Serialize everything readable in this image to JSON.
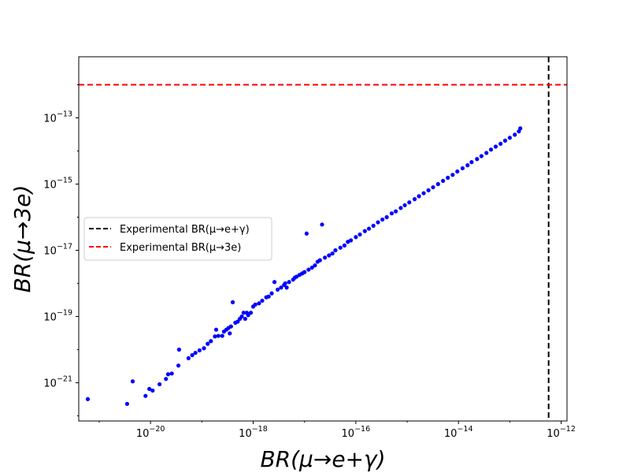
{
  "chart_data": {
    "type": "scatter",
    "title": "",
    "xlabel": "BR(μ→e+γ)",
    "ylabel": "BR(μ→3e)",
    "xscale": "log",
    "yscale": "log",
    "xlim": [
      4e-22,
      1.3e-12
    ],
    "ylim": [
      7e-23,
      7e-12
    ],
    "xticks": [
      {
        "value": 1e-20,
        "base": "10",
        "exp": "−20"
      },
      {
        "value": 1e-18,
        "base": "10",
        "exp": "−18"
      },
      {
        "value": 1e-16,
        "base": "10",
        "exp": "−16"
      },
      {
        "value": 1e-14,
        "base": "10",
        "exp": "−14"
      },
      {
        "value": 1e-12,
        "base": "10",
        "exp": "−12"
      }
    ],
    "yticks": [
      {
        "value": 1e-21,
        "base": "10",
        "exp": "−21"
      },
      {
        "value": 1e-19,
        "base": "10",
        "exp": "−19"
      },
      {
        "value": 1e-17,
        "base": "10",
        "exp": "−17"
      },
      {
        "value": 1e-15,
        "base": "10",
        "exp": "−15"
      },
      {
        "value": 1e-13,
        "base": "10",
        "exp": "−13"
      }
    ],
    "grid": false,
    "legend_position": "center-left",
    "reference_lines": [
      {
        "orientation": "vertical",
        "value": 5.7e-13,
        "color": "#000000",
        "style": "dashed",
        "label": "Experimental BR(μ→e+γ)"
      },
      {
        "orientation": "horizontal",
        "value": 1e-12,
        "color": "#ff0000",
        "style": "dashed",
        "label": "Experimental BR(μ→3e)"
      }
    ],
    "series": [
      {
        "color": "#0000ff",
        "points": [
          [
            6e-22,
            3.2e-22
          ],
          [
            3.5e-21,
            2.3e-22
          ],
          [
            4.5e-21,
            1.1e-21
          ],
          [
            8e-21,
            4e-22
          ],
          [
            9.5e-21,
            6.5e-22
          ],
          [
            1.1e-20,
            5.8e-22
          ],
          [
            1.5e-20,
            9e-22
          ],
          [
            2e-20,
            1.3e-21
          ],
          [
            2.2e-20,
            1.8e-21
          ],
          [
            2.6e-20,
            1.9e-21
          ],
          [
            3.5e-20,
            3.3e-21
          ],
          [
            3.6e-20,
            1e-20
          ],
          [
            5.5e-20,
            5.5e-21
          ],
          [
            6.5e-20,
            6.8e-21
          ],
          [
            7.5e-20,
            8e-21
          ],
          [
            9e-20,
            9.5e-21
          ],
          [
            1.1e-19,
            1.1e-20
          ],
          [
            1.3e-19,
            1.5e-20
          ],
          [
            1.5e-19,
            1.8e-20
          ],
          [
            1.8e-19,
            2.5e-20
          ],
          [
            1.9e-19,
            4e-20
          ],
          [
            2.1e-19,
            2.6e-20
          ],
          [
            2.5e-19,
            2.6e-20
          ],
          [
            2.7e-19,
            3.5e-20
          ],
          [
            3e-19,
            4e-20
          ],
          [
            3.3e-19,
            4.5e-20
          ],
          [
            3.5e-19,
            3.1e-20
          ],
          [
            3.7e-19,
            5e-20
          ],
          [
            4e-19,
            2.7e-19
          ],
          [
            4.5e-19,
            6.5e-20
          ],
          [
            5e-19,
            7e-20
          ],
          [
            5.5e-19,
            8.5e-20
          ],
          [
            6e-19,
            1e-19
          ],
          [
            6.5e-19,
            1.3e-19
          ],
          [
            7e-19,
            8.5e-20
          ],
          [
            7.5e-19,
            1.3e-19
          ],
          [
            8e-19,
            1.1e-19
          ],
          [
            9e-19,
            1.3e-19
          ],
          [
            1e-18,
            2e-19
          ],
          [
            1.1e-18,
            2.3e-19
          ],
          [
            1.3e-18,
            2.5e-19
          ],
          [
            1.5e-18,
            3e-19
          ],
          [
            1.8e-18,
            3.8e-19
          ],
          [
            2e-18,
            4e-19
          ],
          [
            2.3e-18,
            5e-19
          ],
          [
            2.6e-18,
            1.1e-18
          ],
          [
            3e-18,
            6.5e-19
          ],
          [
            3.5e-18,
            7.5e-19
          ],
          [
            4e-18,
            9e-19
          ],
          [
            4.2e-18,
            1e-18
          ],
          [
            4.5e-18,
            7.5e-19
          ],
          [
            5e-18,
            1.1e-18
          ],
          [
            6e-18,
            1.3e-18
          ],
          [
            6.5e-18,
            1.5e-18
          ],
          [
            7e-18,
            1.6e-18
          ],
          [
            8e-18,
            1.8e-18
          ],
          [
            9e-18,
            2e-18
          ],
          [
            1e-17,
            2.2e-18
          ],
          [
            1.1e-17,
            3.2e-17
          ],
          [
            1.2e-17,
            2.6e-18
          ],
          [
            1.4e-17,
            3e-18
          ],
          [
            1.6e-17,
            3.5e-18
          ],
          [
            1.8e-17,
            4.5e-18
          ],
          [
            2e-17,
            5e-18
          ],
          [
            2.2e-17,
            6e-17
          ],
          [
            2.5e-17,
            6e-18
          ],
          [
            3e-17,
            7e-18
          ],
          [
            3.5e-17,
            8e-18
          ],
          [
            4e-17,
            1e-17
          ],
          [
            5e-17,
            1.2e-17
          ],
          [
            6e-17,
            1.4e-17
          ],
          [
            7e-17,
            1.8e-17
          ],
          [
            8e-17,
            2e-17
          ],
          [
            1e-16,
            2.5e-17
          ],
          [
            1.2e-16,
            3e-17
          ],
          [
            1.5e-16,
            3.8e-17
          ],
          [
            1.8e-16,
            4.5e-17
          ],
          [
            2.2e-16,
            5.5e-17
          ],
          [
            2.7e-16,
            7e-17
          ],
          [
            3.3e-16,
            8.5e-17
          ],
          [
            4e-16,
            1e-16
          ],
          [
            5e-16,
            1.3e-16
          ],
          [
            6e-16,
            1.5e-16
          ],
          [
            7.5e-16,
            1.9e-16
          ],
          [
            9e-16,
            2.3e-16
          ],
          [
            1.1e-15,
            2.8e-16
          ],
          [
            1.4e-15,
            3.5e-16
          ],
          [
            1.7e-15,
            4.3e-16
          ],
          [
            2.1e-15,
            5.3e-16
          ],
          [
            2.6e-15,
            6.5e-16
          ],
          [
            3.2e-15,
            8e-16
          ],
          [
            4e-15,
            1e-15
          ],
          [
            5e-15,
            1.25e-15
          ],
          [
            6.2e-15,
            1.55e-15
          ],
          [
            7.7e-15,
            1.9e-15
          ],
          [
            9.5e-15,
            2.4e-15
          ],
          [
            1.2e-14,
            3e-15
          ],
          [
            1.5e-14,
            3.7e-15
          ],
          [
            1.8e-14,
            4.6e-15
          ],
          [
            2.3e-14,
            5.7e-15
          ],
          [
            2.8e-14,
            7e-15
          ],
          [
            3.5e-14,
            8.7e-15
          ],
          [
            4.3e-14,
            1.1e-14
          ],
          [
            5.3e-14,
            1.35e-14
          ],
          [
            6.6e-14,
            1.65e-14
          ],
          [
            8.1e-14,
            2.05e-14
          ],
          [
            1e-13,
            2.5e-14
          ],
          [
            1.25e-13,
            3.1e-14
          ],
          [
            1.5e-13,
            3.9e-14
          ],
          [
            1.6e-13,
            4.8e-14
          ]
        ]
      }
    ]
  }
}
